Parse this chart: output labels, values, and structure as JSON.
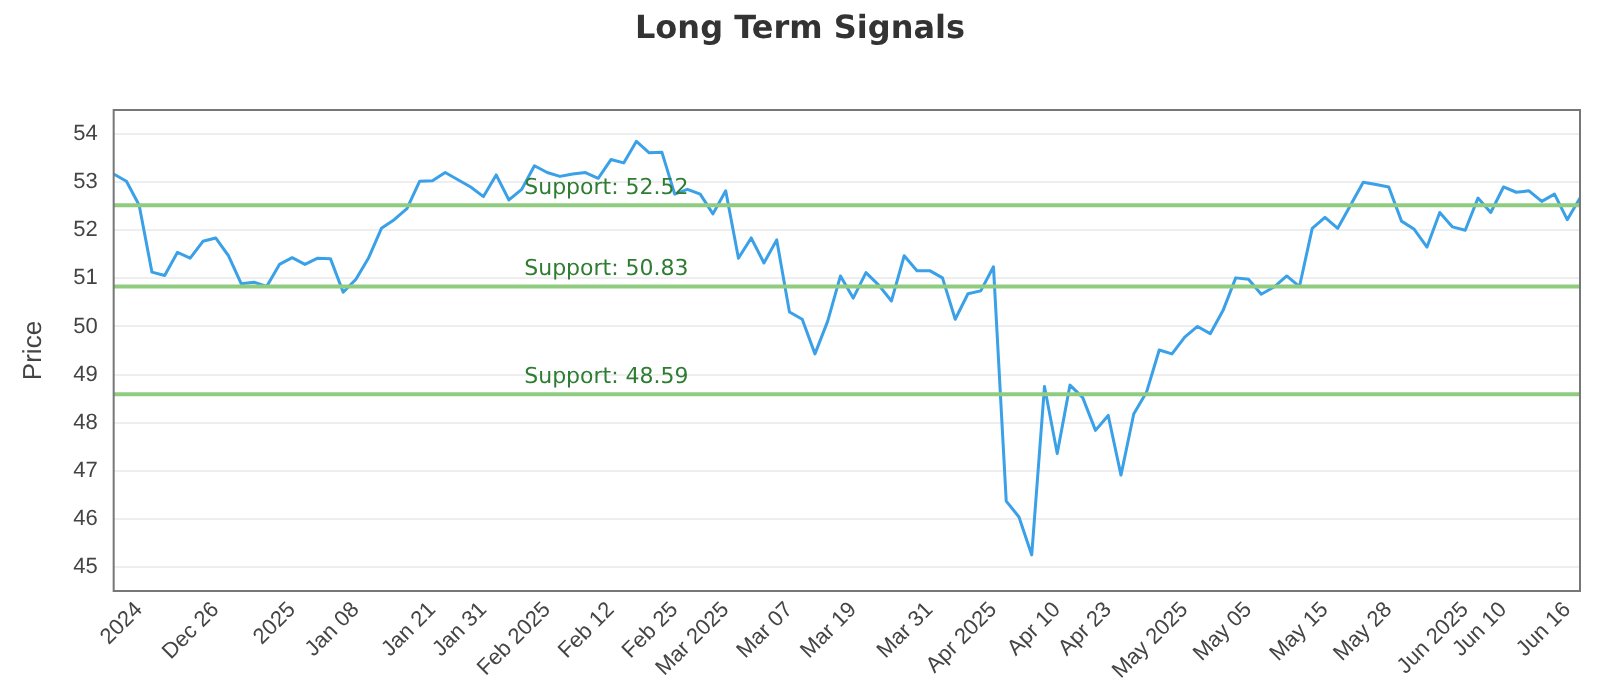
{
  "chart_data": {
    "type": "line",
    "title": "Long Term Signals",
    "ylabel": "Price",
    "categories": [
      null,
      null,
      "2024",
      null,
      null,
      null,
      null,
      null,
      "Dec 26",
      null,
      null,
      null,
      null,
      null,
      "2025",
      null,
      null,
      null,
      null,
      "Jan 08",
      null,
      null,
      null,
      null,
      null,
      "Jan 21",
      null,
      null,
      null,
      "Jan 31",
      null,
      null,
      null,
      null,
      "Feb 2025",
      null,
      null,
      null,
      null,
      "Feb 12",
      null,
      null,
      null,
      null,
      "Feb 25",
      null,
      null,
      null,
      "Mar 2025",
      null,
      null,
      null,
      null,
      "Mar 07",
      null,
      null,
      null,
      null,
      "Mar 19",
      null,
      null,
      null,
      null,
      null,
      "Mar 31",
      null,
      null,
      null,
      null,
      "Apr 2025",
      null,
      null,
      null,
      null,
      "Apr 10",
      null,
      null,
      null,
      "Apr 23",
      null,
      null,
      null,
      null,
      null,
      "May 2025",
      null,
      null,
      null,
      null,
      "May 05",
      null,
      null,
      null,
      null,
      null,
      "May 15",
      null,
      null,
      null,
      null,
      "May 28",
      null,
      null,
      null,
      null,
      null,
      "Jun 2025",
      null,
      null,
      "Jun 10",
      null,
      null,
      null,
      null,
      "Jun 16",
      null
    ],
    "series": [
      {
        "color": "#3aa0e8",
        "values": [
          53.17,
          53.02,
          52.52,
          51.13,
          51.06,
          51.54,
          51.42,
          51.77,
          51.84,
          51.47,
          50.89,
          50.92,
          50.83,
          51.29,
          51.43,
          51.29,
          51.42,
          51.41,
          50.71,
          50.98,
          51.43,
          52.04,
          52.22,
          52.45,
          53.02,
          53.03,
          53.2,
          53.05,
          52.9,
          52.7,
          53.15,
          52.63,
          52.85,
          53.34,
          53.2,
          53.12,
          53.17,
          53.2,
          53.08,
          53.47,
          53.4,
          53.85,
          53.61,
          53.62,
          52.75,
          52.85,
          52.75,
          52.34,
          52.82,
          51.42,
          51.84,
          51.32,
          51.8,
          50.3,
          50.15,
          49.43,
          50.11,
          51.05,
          50.59,
          51.12,
          50.86,
          50.53,
          51.47,
          51.16,
          51.16,
          51.01,
          50.15,
          50.68,
          50.74,
          51.24,
          46.37,
          46.04,
          45.25,
          48.75,
          47.36,
          48.78,
          48.52,
          47.84,
          48.15,
          46.91,
          48.18,
          48.63,
          49.51,
          49.43,
          49.78,
          50.0,
          49.85,
          50.33,
          51.01,
          50.98,
          50.67,
          50.82,
          51.05,
          50.83,
          52.04,
          52.27,
          52.04,
          52.52,
          53.0,
          52.95,
          52.9,
          52.19,
          52.02,
          51.65,
          52.37,
          52.07,
          52.0,
          52.67,
          52.37,
          52.9,
          52.79,
          52.82,
          52.6,
          52.75,
          52.22,
          52.67
        ]
      }
    ],
    "ylim": [
      44.5,
      54.5
    ],
    "yticks": [
      45,
      46,
      47,
      48,
      49,
      50,
      51,
      52,
      53,
      54
    ],
    "ref_lines": [
      {
        "axis": "y",
        "value": 52.52,
        "label": "Support: 52.52",
        "color": "#8fcc7f"
      },
      {
        "axis": "y",
        "value": 50.83,
        "label": "Support: 50.83",
        "color": "#8fcc7f"
      },
      {
        "axis": "y",
        "value": 48.59,
        "label": "Support: 48.59",
        "color": "#8fcc7f"
      }
    ],
    "grid": "y",
    "legend": false,
    "marker": "none",
    "line_style": "solid"
  }
}
